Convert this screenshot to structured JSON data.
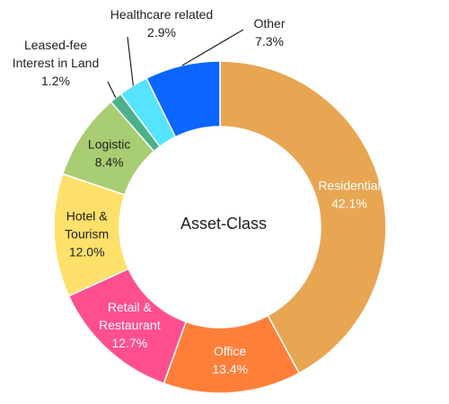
{
  "chart_data": {
    "type": "pie",
    "center_label": "Asset-Class",
    "slices": [
      {
        "name": "Residential",
        "value": 42.1,
        "value_label": "42.1%",
        "color": "#E8A653",
        "text_color": "#ffffff",
        "label_position": "inside"
      },
      {
        "name": "Office",
        "value": 13.4,
        "value_label": "13.4%",
        "color": "#FF7F3A",
        "text_color": "#ffffff",
        "label_position": "inside"
      },
      {
        "name": "Retail & Restaurant",
        "value": 12.7,
        "value_label": "12.7%",
        "color": "#FF4F8E",
        "text_color": "#ffffff",
        "label_position": "inside"
      },
      {
        "name": "Hotel & Tourism",
        "value": 12.0,
        "value_label": "12.0%",
        "color": "#FFE06A",
        "text_color": "#222222",
        "label_position": "inside"
      },
      {
        "name": "Logistic",
        "value": 8.4,
        "value_label": "8.4%",
        "color": "#A9CD72",
        "text_color": "#222222",
        "label_position": "inside"
      },
      {
        "name": "Leased-fee Interest in Land",
        "value": 1.2,
        "value_label": "1.2%",
        "color": "#4CB08A",
        "text_color": "#222222",
        "label_position": "outside"
      },
      {
        "name": "Healthcare related",
        "value": 2.9,
        "value_label": "2.9%",
        "color": "#55E3FF",
        "text_color": "#222222",
        "label_position": "outside"
      },
      {
        "name": "Other",
        "value": 7.3,
        "value_label": "7.3%",
        "color": "#0A66FF",
        "text_color": "#222222",
        "label_position": "outside"
      }
    ]
  }
}
